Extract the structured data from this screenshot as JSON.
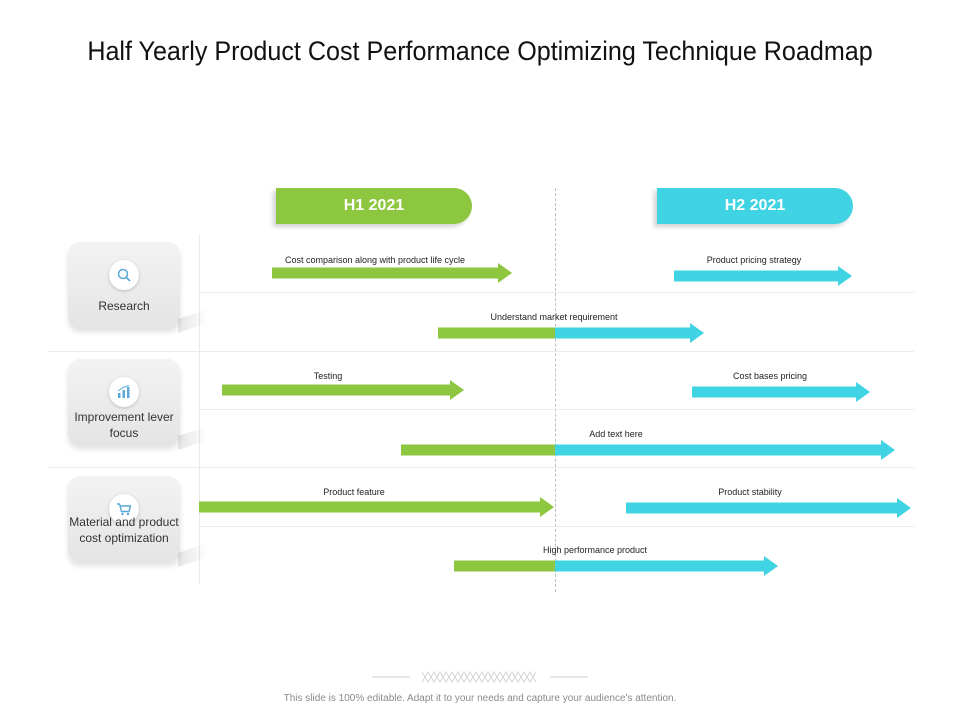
{
  "title": "Half Yearly Product Cost Performance Optimizing Technique Roadmap",
  "headers": {
    "h1": "H1 2021",
    "h2": "H2 2021"
  },
  "colors": {
    "green": "#8dc63f",
    "cyan": "#3fd3e3"
  },
  "categories": [
    {
      "label": "Research",
      "icon": "magnifier-icon"
    },
    {
      "label": "Improvement lever focus",
      "icon": "growth-chart-icon"
    },
    {
      "label": "Material and product cost optimization",
      "icon": "shopping-cart-icon"
    }
  ],
  "tasks": [
    {
      "label": "Cost comparison along with product life cycle",
      "row": 1,
      "phase": "H1"
    },
    {
      "label": "Product pricing strategy",
      "row": 1,
      "phase": "H2"
    },
    {
      "label": "Understand market requirement",
      "row": 2,
      "phase": "H1-H2"
    },
    {
      "label": "Testing",
      "row": 3,
      "phase": "H1"
    },
    {
      "label": "Cost bases pricing",
      "row": 3,
      "phase": "H2"
    },
    {
      "label": "Add text here",
      "row": 4,
      "phase": "H1-H2"
    },
    {
      "label": "Product feature",
      "row": 5,
      "phase": "H1"
    },
    {
      "label": "Product stability",
      "row": 5,
      "phase": "H2"
    },
    {
      "label": "High performance product",
      "row": 6,
      "phase": "H1-H2"
    }
  ],
  "footer": "This slide is 100% editable. Adapt it to your needs and capture your audience's attention."
}
